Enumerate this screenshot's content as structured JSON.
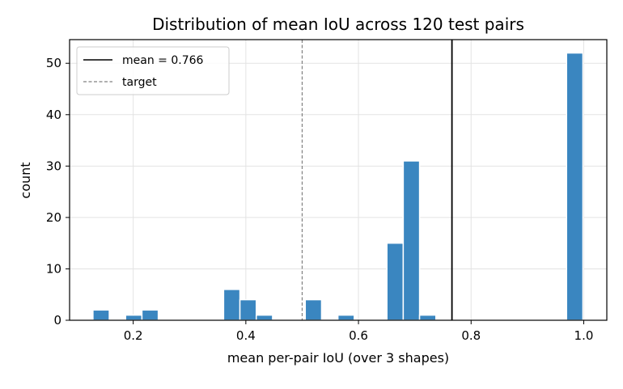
{
  "chart_data": {
    "type": "bar",
    "title": "Distribution of mean IoU across 120 test pairs",
    "xlabel": "mean per-pair IoU (over 3 shapes)",
    "ylabel": "count",
    "xlim": [
      0.087,
      1.041
    ],
    "ylim": [
      0,
      54.6
    ],
    "xticks": [
      0.2,
      0.4,
      0.6,
      0.8,
      1.0
    ],
    "xtick_labels": [
      "0.2",
      "0.4",
      "0.6",
      "0.8",
      "1.0"
    ],
    "yticks": [
      0,
      10,
      20,
      30,
      40,
      50
    ],
    "ytick_labels": [
      "0",
      "10",
      "20",
      "30",
      "40",
      "50"
    ],
    "grid": true,
    "bar_color": "#3a86c0",
    "bin_width": 0.029,
    "bins": [
      {
        "x0": 0.1285,
        "count": 2
      },
      {
        "x0": 0.1865,
        "count": 1
      },
      {
        "x0": 0.2155,
        "count": 2
      },
      {
        "x0": 0.3605,
        "count": 6
      },
      {
        "x0": 0.3895,
        "count": 4
      },
      {
        "x0": 0.4185,
        "count": 1
      },
      {
        "x0": 0.5055,
        "count": 4
      },
      {
        "x0": 0.5635,
        "count": 1
      },
      {
        "x0": 0.6505,
        "count": 15
      },
      {
        "x0": 0.6795,
        "count": 31
      },
      {
        "x0": 0.7085,
        "count": 1
      },
      {
        "x0": 0.9695,
        "count": 52
      }
    ],
    "lines": [
      {
        "label": "mean = 0.766",
        "x": 0.766,
        "style": "solid",
        "color": "#000000"
      },
      {
        "label": "target",
        "x": 0.5,
        "style": "dashed",
        "color": "#808080"
      }
    ],
    "legend": "top-left"
  }
}
